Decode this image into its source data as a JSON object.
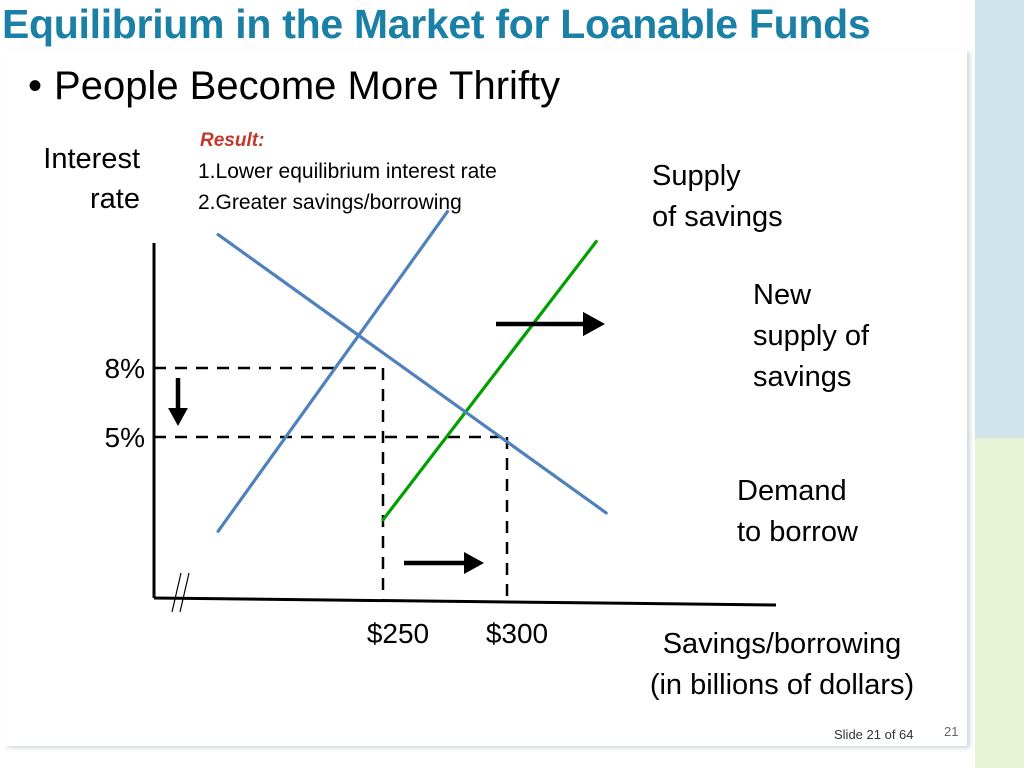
{
  "slide": {
    "title": "Equilibrium in the Market for Loanable Funds",
    "bullet": "People Become More Thrifty",
    "footer": "Slide 21 of 64",
    "page_number": "21"
  },
  "chart_data": {
    "type": "line",
    "ylabel": [
      "Interest",
      "rate"
    ],
    "xlabel": [
      "Savings/borrowing",
      "(in billions of dollars)"
    ],
    "x_ticks": [
      {
        "value": 250,
        "label": "$250"
      },
      {
        "value": 300,
        "label": "$300"
      }
    ],
    "y_ticks": [
      {
        "value": 8,
        "label": "8%"
      },
      {
        "value": 5,
        "label": "5%"
      }
    ],
    "annotation": {
      "heading": "Result:",
      "lines": [
        "1.Lower equilibrium interest rate",
        "2.Greater savings/borrowing"
      ]
    },
    "series": [
      {
        "name": "Supply of savings",
        "label_lines": [
          "Supply",
          "of savings"
        ],
        "color": "#4f81bd",
        "points": [
          [
            183.5,
            0.9
          ],
          [
            276,
            14.8
          ]
        ]
      },
      {
        "name": "New supply of savings",
        "label_lines": [
          "New",
          "supply of",
          "savings"
        ],
        "color": "#00a000",
        "points": [
          [
            250,
            1.4
          ],
          [
            336,
            13.5
          ]
        ]
      },
      {
        "name": "Demand to borrow",
        "label_lines": [
          "Demand",
          "to borrow"
        ],
        "color": "#4f81bd",
        "points": [
          [
            183.5,
            13.8
          ],
          [
            340,
            1.7
          ]
        ]
      }
    ],
    "equilibria": [
      {
        "x": 250,
        "y": 8
      },
      {
        "x": 300,
        "y": 5
      }
    ]
  }
}
